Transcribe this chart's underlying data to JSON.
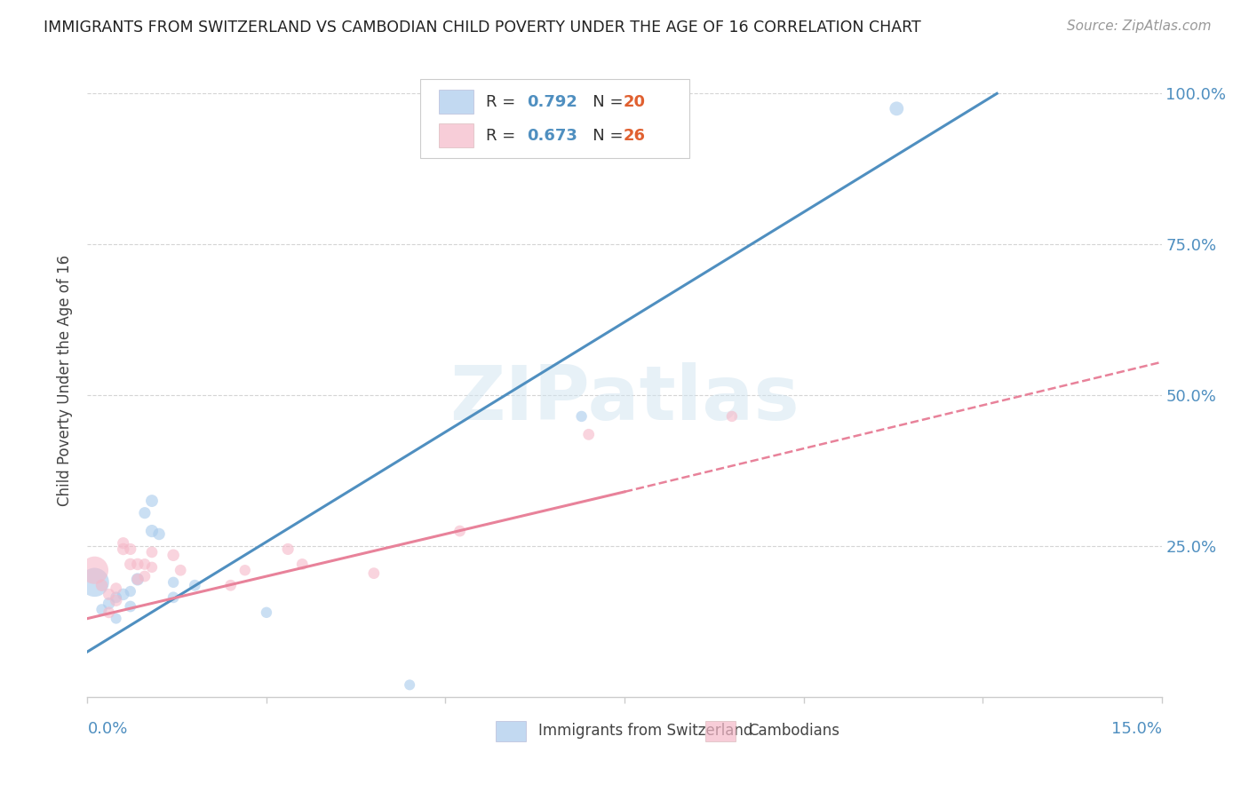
{
  "title": "IMMIGRANTS FROM SWITZERLAND VS CAMBODIAN CHILD POVERTY UNDER THE AGE OF 16 CORRELATION CHART",
  "source": "Source: ZipAtlas.com",
  "ylabel": "Child Poverty Under the Age of 16",
  "xlim": [
    0.0,
    0.15
  ],
  "ylim": [
    0.0,
    1.05
  ],
  "ytick_pos": [
    0.0,
    0.25,
    0.5,
    0.75,
    1.0
  ],
  "ytick_labels": [
    "",
    "25.0%",
    "50.0%",
    "75.0%",
    "100.0%"
  ],
  "xtick_pos": [
    0.0,
    0.025,
    0.05,
    0.075,
    0.1,
    0.125,
    0.15
  ],
  "legend_r1": "R = 0.792",
  "legend_n1": "N = 20",
  "legend_r2": "R = 0.673",
  "legend_n2": "N = 26",
  "legend_label1": "Immigrants from Switzerland",
  "legend_label2": "Cambodians",
  "blue_color": "#a8caec",
  "pink_color": "#f5b8c8",
  "blue_line_color": "#4f8fc0",
  "pink_line_color": "#e8829a",
  "watermark": "ZIPatlas",
  "swiss_points": [
    [
      0.001,
      0.19,
      550
    ],
    [
      0.002,
      0.145,
      80
    ],
    [
      0.003,
      0.155,
      95
    ],
    [
      0.004,
      0.165,
      85
    ],
    [
      0.004,
      0.13,
      75
    ],
    [
      0.005,
      0.17,
      95
    ],
    [
      0.006,
      0.15,
      85
    ],
    [
      0.006,
      0.175,
      80
    ],
    [
      0.007,
      0.195,
      105
    ],
    [
      0.008,
      0.305,
      90
    ],
    [
      0.009,
      0.275,
      105
    ],
    [
      0.009,
      0.325,
      100
    ],
    [
      0.01,
      0.27,
      95
    ],
    [
      0.012,
      0.19,
      80
    ],
    [
      0.012,
      0.165,
      85
    ],
    [
      0.015,
      0.185,
      85
    ],
    [
      0.025,
      0.14,
      80
    ],
    [
      0.045,
      0.02,
      75
    ],
    [
      0.069,
      0.465,
      80
    ],
    [
      0.113,
      0.975,
      130
    ]
  ],
  "cambodian_points": [
    [
      0.001,
      0.21,
      500
    ],
    [
      0.002,
      0.185,
      95
    ],
    [
      0.003,
      0.17,
      90
    ],
    [
      0.003,
      0.14,
      85
    ],
    [
      0.004,
      0.16,
      95
    ],
    [
      0.004,
      0.18,
      85
    ],
    [
      0.005,
      0.245,
      95
    ],
    [
      0.005,
      0.255,
      90
    ],
    [
      0.006,
      0.22,
      95
    ],
    [
      0.006,
      0.245,
      90
    ],
    [
      0.007,
      0.22,
      95
    ],
    [
      0.007,
      0.195,
      85
    ],
    [
      0.008,
      0.22,
      85
    ],
    [
      0.008,
      0.2,
      85
    ],
    [
      0.009,
      0.24,
      85
    ],
    [
      0.009,
      0.215,
      80
    ],
    [
      0.012,
      0.235,
      95
    ],
    [
      0.013,
      0.21,
      85
    ],
    [
      0.02,
      0.185,
      85
    ],
    [
      0.022,
      0.21,
      80
    ],
    [
      0.028,
      0.245,
      90
    ],
    [
      0.03,
      0.22,
      85
    ],
    [
      0.04,
      0.205,
      85
    ],
    [
      0.052,
      0.275,
      85
    ],
    [
      0.07,
      0.435,
      85
    ],
    [
      0.09,
      0.465,
      80
    ]
  ],
  "blue_line_x0": 0.0,
  "blue_line_x1": 0.127,
  "blue_line_y0": 0.075,
  "blue_line_y1": 1.0,
  "pink_line_x0": 0.0,
  "pink_line_x1_solid": 0.075,
  "pink_line_x1_dash": 0.15,
  "pink_line_y0": 0.13,
  "pink_line_y1_solid": 0.34,
  "pink_line_y1_dash": 0.555
}
